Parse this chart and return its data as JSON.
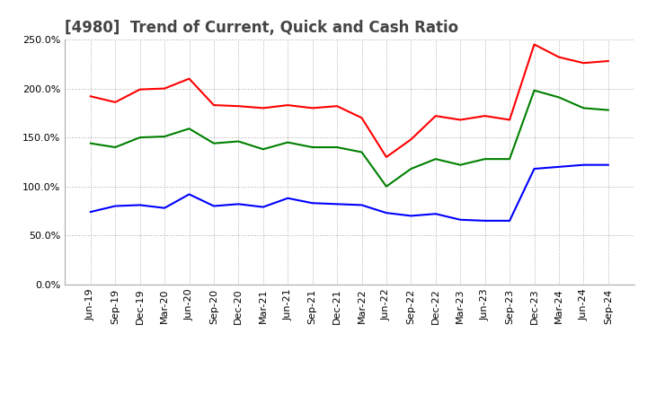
{
  "title": "[4980]  Trend of Current, Quick and Cash Ratio",
  "x_labels": [
    "Jun-19",
    "Sep-19",
    "Dec-19",
    "Mar-20",
    "Jun-20",
    "Sep-20",
    "Dec-20",
    "Mar-21",
    "Jun-21",
    "Sep-21",
    "Dec-21",
    "Mar-22",
    "Jun-22",
    "Sep-22",
    "Dec-22",
    "Mar-23",
    "Jun-23",
    "Sep-23",
    "Dec-23",
    "Mar-24",
    "Jun-24",
    "Sep-24"
  ],
  "current_ratio": [
    192.0,
    186.0,
    199.0,
    200.0,
    210.0,
    183.0,
    182.0,
    180.0,
    183.0,
    180.0,
    182.0,
    170.0,
    130.0,
    148.0,
    172.0,
    168.0,
    172.0,
    168.0,
    245.0,
    232.0,
    226.0,
    228.0
  ],
  "quick_ratio": [
    144.0,
    140.0,
    150.0,
    151.0,
    159.0,
    144.0,
    146.0,
    138.0,
    145.0,
    140.0,
    140.0,
    135.0,
    100.0,
    118.0,
    128.0,
    122.0,
    128.0,
    128.0,
    198.0,
    191.0,
    180.0,
    178.0
  ],
  "cash_ratio": [
    74.0,
    80.0,
    81.0,
    78.0,
    92.0,
    80.0,
    82.0,
    79.0,
    88.0,
    83.0,
    82.0,
    81.0,
    73.0,
    70.0,
    72.0,
    66.0,
    65.0,
    65.0,
    118.0,
    120.0,
    122.0,
    122.0
  ],
  "ylim": [
    0.0,
    250.0
  ],
  "yticks": [
    0.0,
    50.0,
    100.0,
    150.0,
    200.0,
    250.0
  ],
  "current_color": "#ff0000",
  "quick_color": "#008000",
  "cash_color": "#0000ff",
  "line_width": 1.5,
  "title_fontsize": 12,
  "tick_fontsize": 8,
  "legend_fontsize": 9,
  "background_color": "#ffffff",
  "grid_color": "#aaaaaa"
}
